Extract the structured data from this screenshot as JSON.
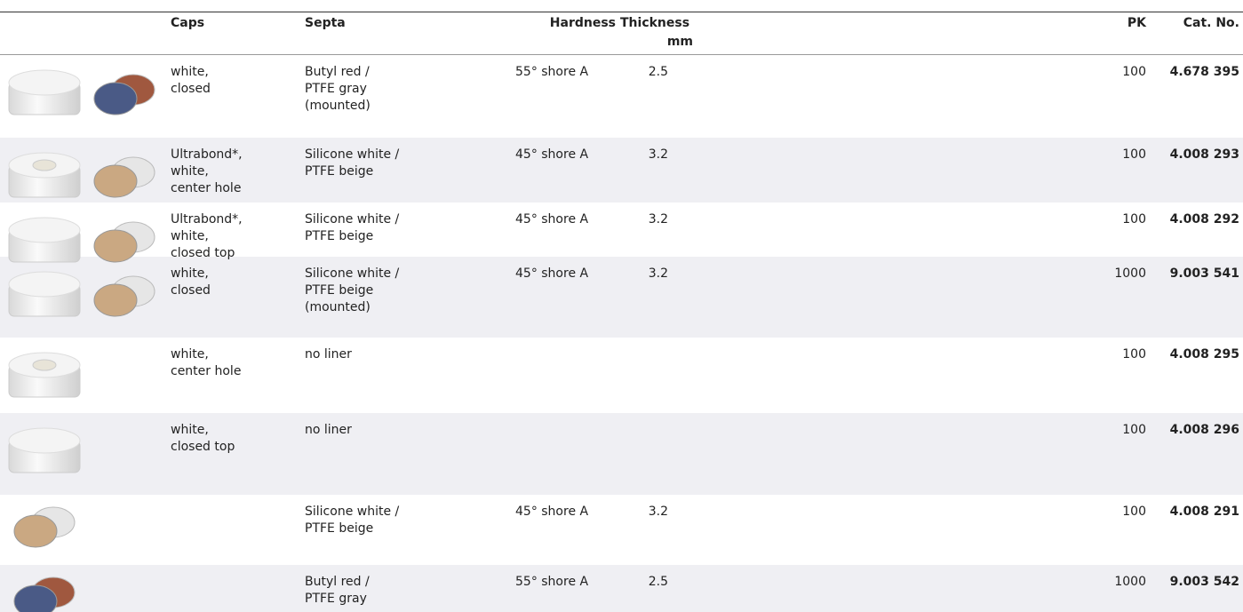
{
  "header": {
    "caps": "Caps",
    "septa": "Septa",
    "hardness": "Hardness",
    "thickness": "Thickness",
    "thickness_unit": "mm",
    "pk": "PK",
    "cat_no": "Cat. No."
  },
  "table": {
    "rows": [
      {
        "caps": "white,\nclosed",
        "septa": "Butyl red /\nPTFE gray\n(mounted)",
        "hardness": "55° shore A",
        "thickness": 2.5,
        "pk": 100,
        "cat_no": "4.678 395"
      },
      {
        "caps": "Ultrabond*,\nwhite,\ncenter hole",
        "septa": "Silicone white /\nPTFE beige",
        "hardness": "45° shore A",
        "thickness": 3.2,
        "pk": 100,
        "cat_no": "4.008 293"
      },
      {
        "caps": "Ultrabond*,\nwhite,\nclosed top",
        "septa": "Silicone white /\nPTFE beige",
        "hardness": "45° shore A",
        "thickness": 3.2,
        "pk": 100,
        "cat_no": "4.008 292"
      },
      {
        "caps": "white,\nclosed",
        "septa": "Silicone white /\nPTFE beige\n(mounted)",
        "hardness": "45° shore A",
        "thickness": 3.2,
        "pk": 1000,
        "cat_no": "9.003 541"
      },
      {
        "caps": "white,\ncenter hole",
        "septa": "no liner",
        "hardness": null,
        "thickness": null,
        "pk": 100,
        "cat_no": "4.008 295"
      },
      {
        "caps": "white,\nclosed top",
        "septa": "no liner",
        "hardness": null,
        "thickness": null,
        "pk": 100,
        "cat_no": "4.008 296"
      },
      {
        "caps": null,
        "septa": "Silicone white /\nPTFE beige",
        "hardness": "45° shore A",
        "thickness": 3.2,
        "pk": 100,
        "cat_no": "4.008 291"
      },
      {
        "caps": null,
        "septa": "Butyl red /\nPTFE gray",
        "hardness": "55° shore A",
        "thickness": 2.5,
        "pk": 1000,
        "cat_no": "9.003 542"
      }
    ]
  }
}
